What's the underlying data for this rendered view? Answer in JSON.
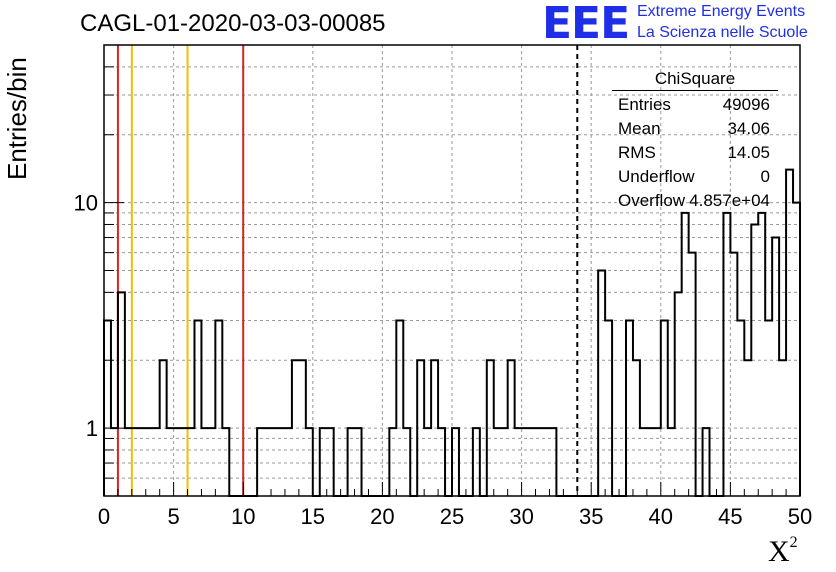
{
  "header": {
    "run_title": "CAGL-01-2020-03-03-00085",
    "logo_text": "EEE",
    "brand_line1": "Extreme Energy Events",
    "brand_line2": "La Scienza nelle Scuole"
  },
  "stats_box": {
    "title": "ChiSquare",
    "rows": [
      {
        "label": "Entries",
        "value": "49096"
      },
      {
        "label": "Mean",
        "value": "34.06"
      },
      {
        "label": "RMS",
        "value": "14.05"
      },
      {
        "label": "Underflow",
        "value": "0"
      },
      {
        "label": "Overflow",
        "value": "4.857e+04"
      }
    ]
  },
  "chart_data": {
    "type": "bar",
    "histogram": true,
    "title": "CAGL-01-2020-03-03-00085",
    "ylabel": "Entries/bin",
    "xlabel": "X",
    "xlabel_sup": "2",
    "xlim": [
      0,
      50
    ],
    "ylim": [
      0.5,
      50
    ],
    "y_scale": "log",
    "grid": true,
    "bin_width": 0.5,
    "x_ticks": [
      0,
      5,
      10,
      15,
      20,
      25,
      30,
      35,
      40,
      45,
      50
    ],
    "y_tick_labels": [
      {
        "value": 1,
        "label": "1"
      },
      {
        "value": 10,
        "label": "10"
      }
    ],
    "values": [
      3,
      1,
      4,
      1,
      1,
      1,
      1,
      1,
      2,
      1,
      1,
      1,
      1,
      3,
      1,
      1,
      3,
      1,
      0,
      0,
      0,
      0,
      1,
      1,
      1,
      1,
      1,
      2,
      2,
      1,
      0,
      1,
      1,
      0,
      0,
      1,
      1,
      0,
      0,
      0,
      0,
      1,
      3,
      1,
      0,
      2,
      1,
      2,
      1,
      0,
      1,
      0,
      0,
      1,
      0,
      2,
      1,
      1,
      2,
      1,
      1,
      1,
      1,
      1,
      1,
      0,
      0,
      0,
      0,
      0,
      0,
      5,
      3,
      0,
      0,
      3,
      2,
      1,
      1,
      1,
      3,
      1,
      4,
      9,
      6,
      0,
      1,
      0,
      0,
      9,
      6,
      3,
      2,
      8,
      9,
      3,
      7,
      2,
      14,
      10
    ],
    "vertical_markers": [
      {
        "x": 1,
        "color": "#e02020",
        "style": "solid"
      },
      {
        "x": 2,
        "color": "#f0c000",
        "style": "solid"
      },
      {
        "x": 6,
        "color": "#f0c000",
        "style": "solid"
      },
      {
        "x": 10,
        "color": "#e02020",
        "style": "solid"
      },
      {
        "x": 34,
        "color": "#000000",
        "style": "dashed"
      }
    ]
  }
}
